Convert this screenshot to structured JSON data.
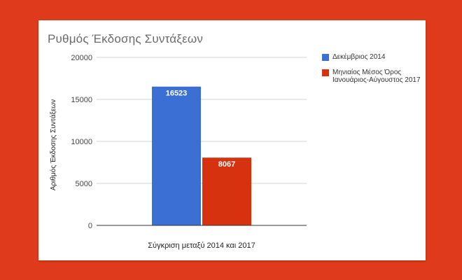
{
  "chart_data": {
    "type": "bar",
    "title": "Ρυθμός Έκδοσης Συντάξεων",
    "xlabel": "Σύγκριση μεταξύ 2014 και 2017",
    "ylabel": "Αριθμός Έκδοσης Συντάξεων",
    "ylim": [
      0,
      20000
    ],
    "yticks": [
      "0",
      "5000",
      "10000",
      "15000",
      "20000"
    ],
    "grid": true,
    "legend_position": "right",
    "categories": [
      "Σύγκριση μεταξύ 2014 και 2017"
    ],
    "series": [
      {
        "name": "Δεκέμβριος 2014",
        "values": [
          16523
        ],
        "label": "16523",
        "color": "#3c6fd3"
      },
      {
        "name": "Μηνιαίος Μέσος Όρος Ιανουάριος-Αύγουστος 2017",
        "values": [
          8067
        ],
        "label": "8067",
        "color": "#d7320f"
      }
    ]
  }
}
